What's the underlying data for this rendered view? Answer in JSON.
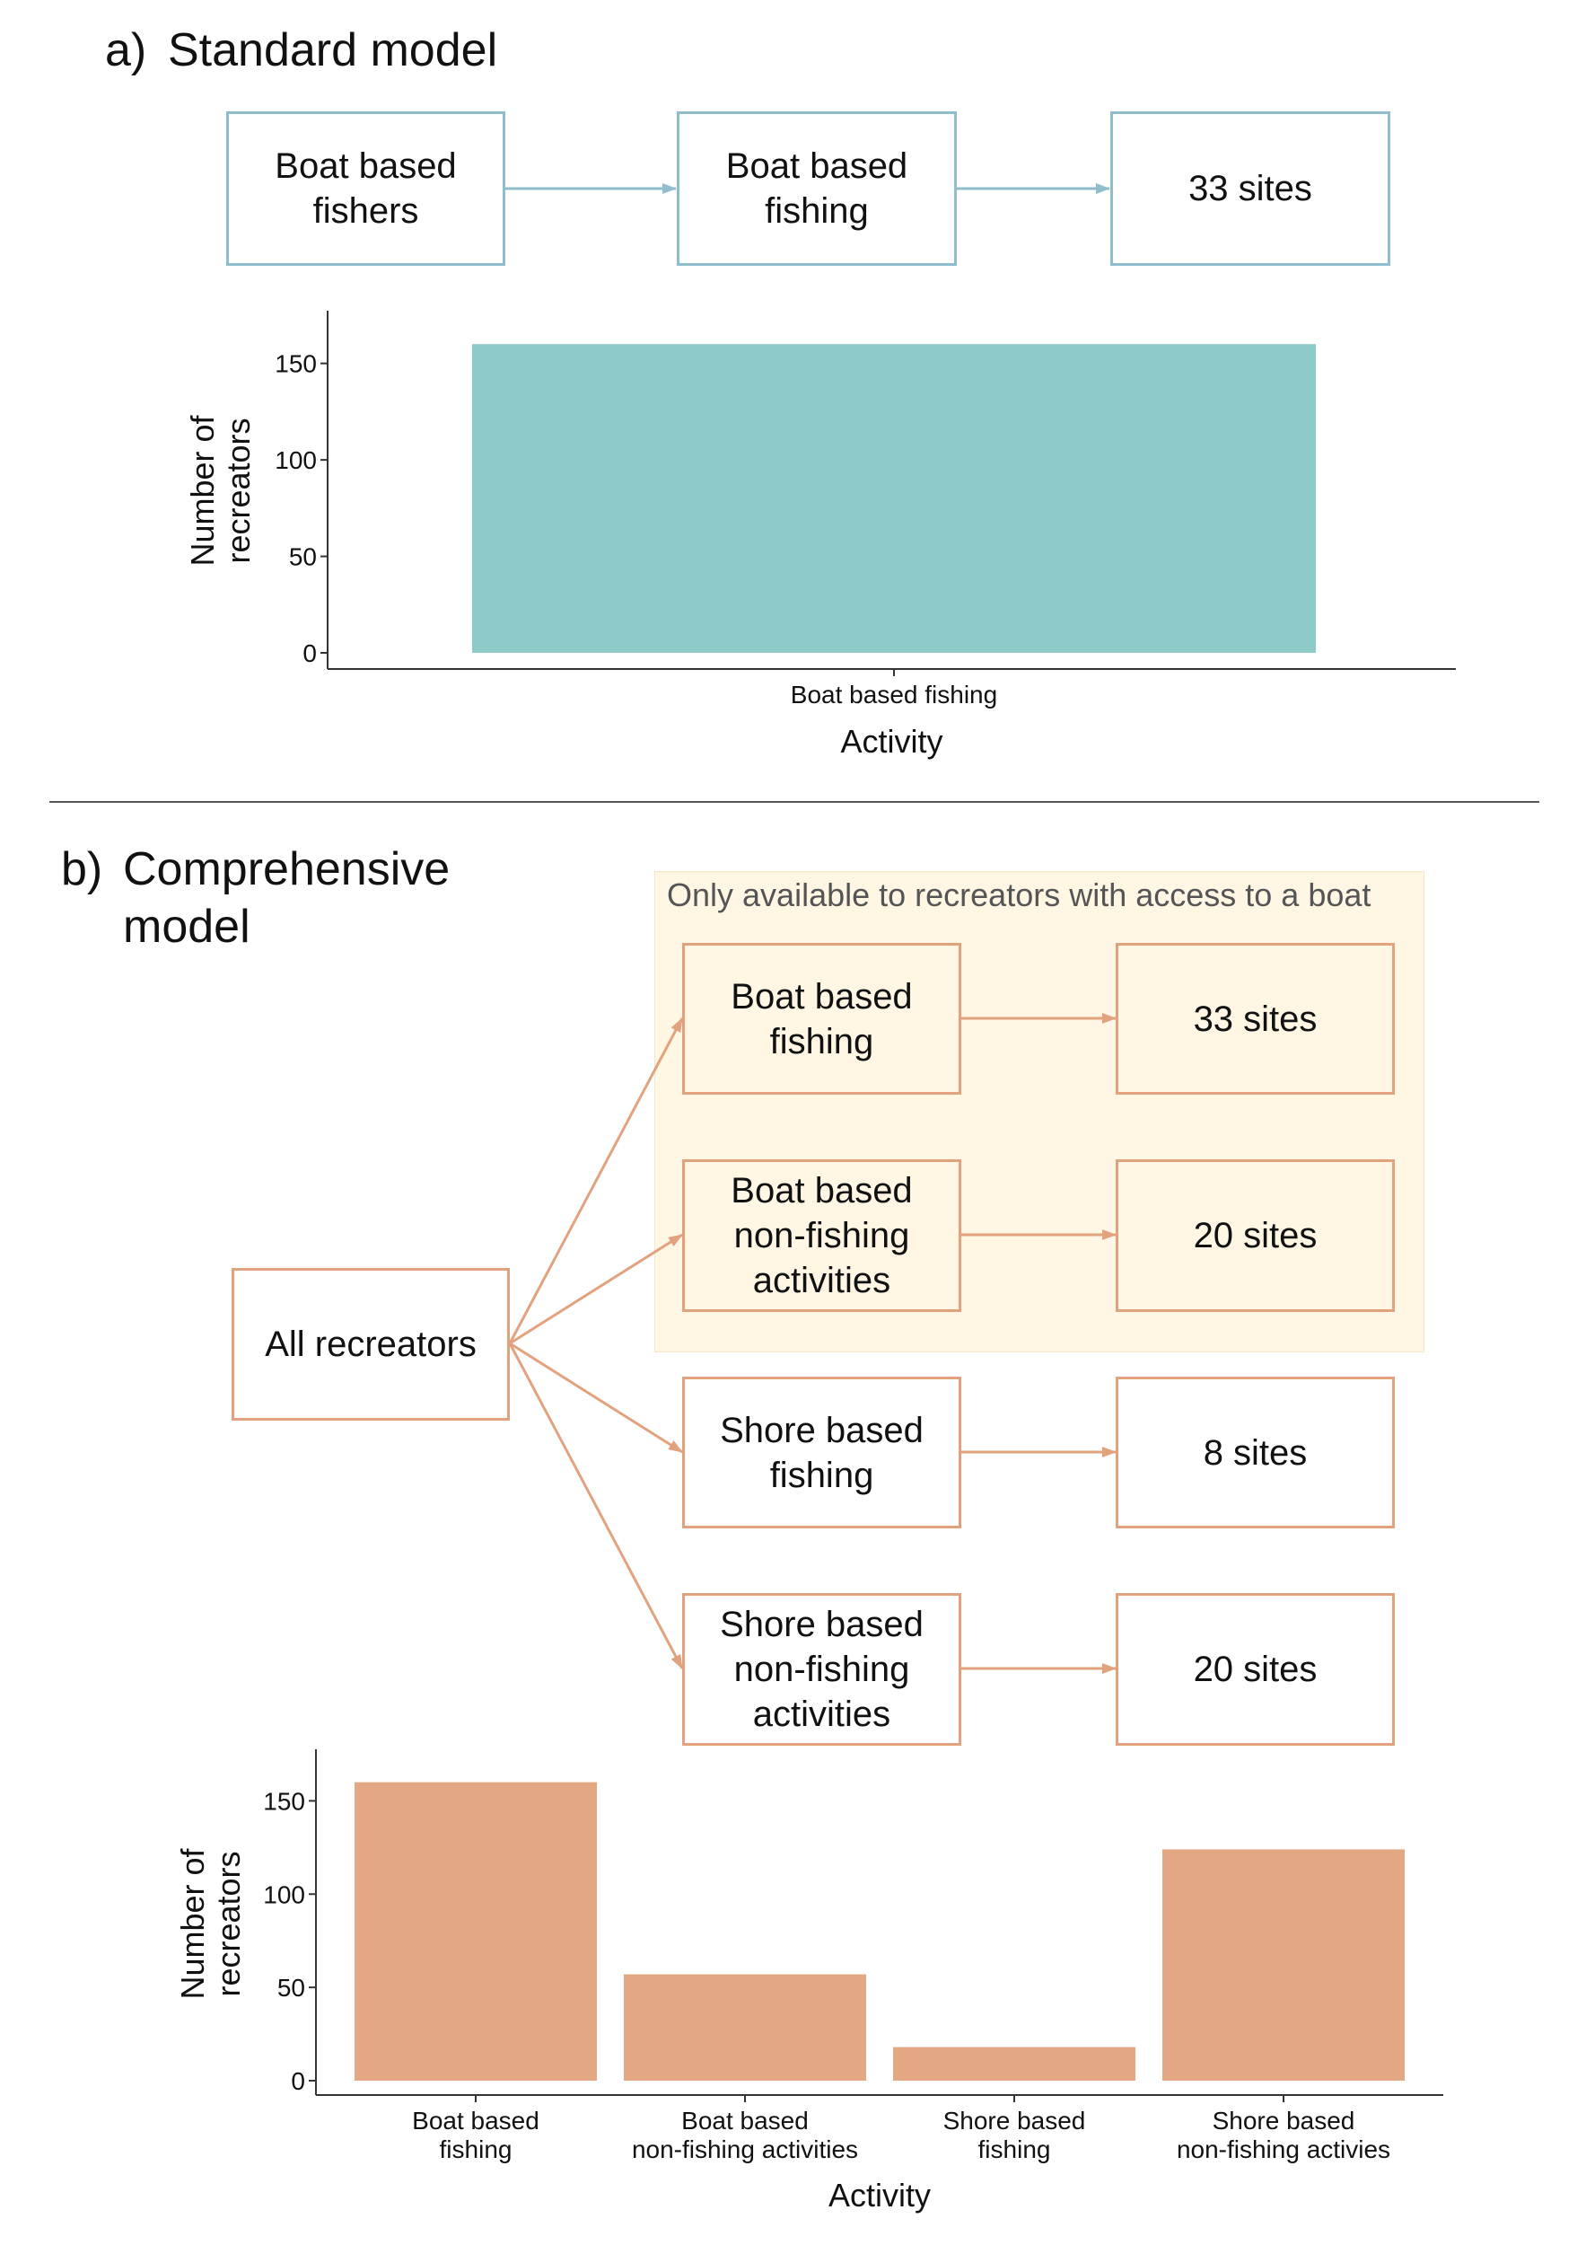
{
  "panel_a": {
    "title_letter": "a)",
    "title_text": "Standard model",
    "flow": [
      "Boat based\nfishers",
      "Boat based\nfishing",
      "33 sites"
    ]
  },
  "panel_b": {
    "title_letter": "b)",
    "title_text": "Comprehensive\nmodel",
    "highlight_label": "Only available to recreators with access to a boat",
    "root": "All recreators",
    "activities": [
      "Boat based\nfishing",
      "Boat based\nnon-fishing\nactivities",
      "Shore based\nfishing",
      "Shore based\nnon-fishing\nactivities"
    ],
    "sites": [
      "33 sites",
      "20 sites",
      "8 sites",
      "20 sites"
    ]
  },
  "colors": {
    "teal_bar": "#8ecac8",
    "teal_border": "#8fbdcb",
    "orange_bar": "#e3a883",
    "orange_border": "#e2a27e",
    "highlight_bg": "#fff7e4"
  },
  "chart_data": [
    {
      "type": "bar",
      "categories": [
        "Boat based fishing"
      ],
      "values": [
        160
      ],
      "xlabel": "Activity",
      "ylabel": "Number of\nrecreators",
      "ylim": [
        0,
        168
      ],
      "yticks": [
        0,
        50,
        100,
        150
      ],
      "grid": false
    },
    {
      "type": "bar",
      "categories": [
        "Boat based\nfishing",
        "Boat based\nnon-fishing activities",
        "Shore based\nfishing",
        "Shore based\nnon-fishing activies"
      ],
      "values": [
        160,
        57,
        18,
        124
      ],
      "xlabel": "Activity",
      "ylabel": "Number of\nrecreators",
      "ylim": [
        0,
        168
      ],
      "yticks": [
        0,
        50,
        100,
        150
      ],
      "grid": false
    }
  ]
}
